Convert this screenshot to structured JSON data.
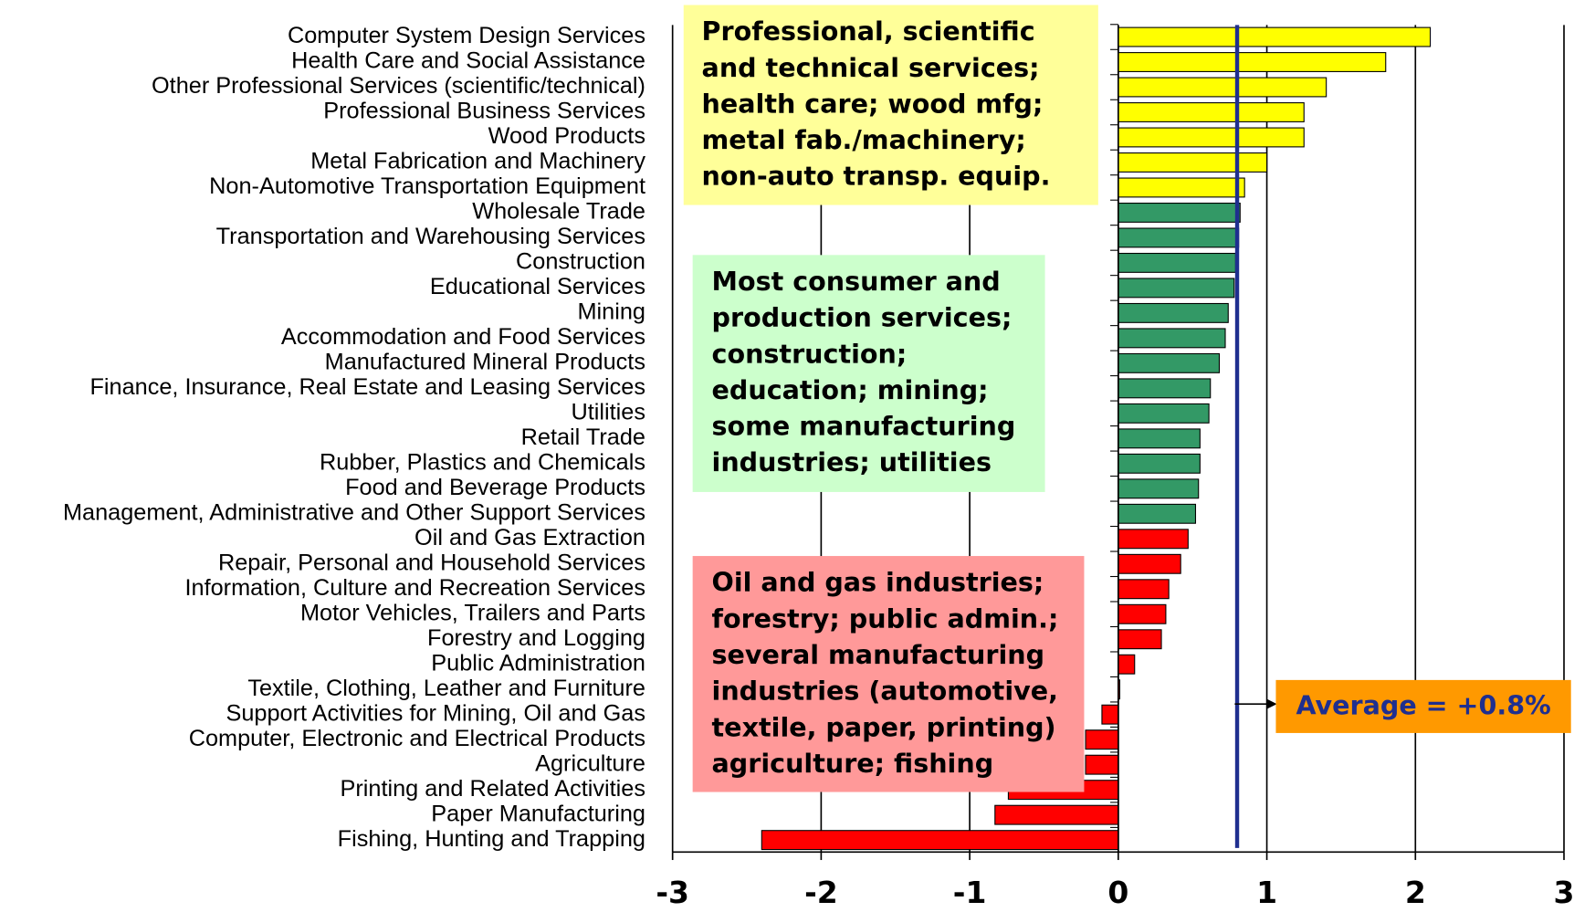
{
  "chart_data": {
    "type": "bar",
    "orientation": "horizontal",
    "categories": [
      "Computer System Design Services",
      "Health Care and Social Assistance",
      "Other Professional Services (scientific/technical)",
      "Professional Business Services",
      "Wood Products",
      "Metal Fabrication and Machinery",
      "Non-Automotive Transportation Equipment",
      "Wholesale Trade",
      "Transportation and Warehousing Services",
      "Construction",
      "Educational Services",
      "Mining",
      "Accommodation and Food Services",
      "Manufactured Mineral Products",
      "Finance, Insurance, Real Estate and Leasing Services",
      "Utilities",
      "Retail Trade",
      "Rubber, Plastics and Chemicals",
      "Food and Beverage Products",
      "Management, Administrative and Other Support Services",
      "Oil and Gas Extraction",
      "Repair, Personal and Household Services",
      "Information, Culture and Recreation Services",
      "Motor Vehicles, Trailers and Parts",
      "Forestry and Logging",
      "Public Administration",
      "Textile, Clothing, Leather and Furniture",
      "Support Activities for Mining, Oil and Gas",
      "Computer, Electronic and Electrical Products",
      "Agriculture",
      "Printing and Related Activities",
      "Paper Manufacturing",
      "Fishing, Hunting and Trapping"
    ],
    "values": [
      2.1,
      1.8,
      1.4,
      1.25,
      1.25,
      1.0,
      0.85,
      0.82,
      0.81,
      0.79,
      0.78,
      0.74,
      0.72,
      0.68,
      0.62,
      0.61,
      0.55,
      0.55,
      0.54,
      0.52,
      0.47,
      0.42,
      0.34,
      0.32,
      0.29,
      0.11,
      0.01,
      -0.11,
      -0.22,
      -0.22,
      -0.74,
      -0.83,
      -2.4
    ],
    "colors": [
      "#ffff00",
      "#ffff00",
      "#ffff00",
      "#ffff00",
      "#ffff00",
      "#ffff00",
      "#ffff00",
      "#339966",
      "#339966",
      "#339966",
      "#339966",
      "#339966",
      "#339966",
      "#339966",
      "#339966",
      "#339966",
      "#339966",
      "#339966",
      "#339966",
      "#339966",
      "#ff0000",
      "#ff0000",
      "#ff0000",
      "#ff0000",
      "#ff0000",
      "#ff0000",
      "#ff0000",
      "#ff0000",
      "#ff0000",
      "#ff0000",
      "#ff0000",
      "#ff0000",
      "#ff0000"
    ],
    "xlim": [
      -3,
      3
    ],
    "xticks": [
      -3,
      -2,
      -1,
      0,
      1,
      2,
      3
    ],
    "grid": true,
    "average": {
      "value": 0.8,
      "label": "Average = +0.8%"
    },
    "annotations": [
      {
        "lines": [
          "Professional, scientific",
          "and technical services;",
          "health care; wood mfg;",
          "metal fab./machinery;",
          "non-auto transp. equip."
        ],
        "color": "#ffff99"
      },
      {
        "lines": [
          "Most consumer and",
          "production services;",
          "construction;",
          "education; mining;",
          "some manufacturing",
          "industries; utilities"
        ],
        "color": "#ccffcc"
      },
      {
        "lines": [
          "Oil and gas industries;",
          "forestry; public admin.;",
          "several manufacturing",
          "industries (automotive,",
          "textile, paper, printing)",
          "agriculture; fishing"
        ],
        "color": "#ff9999"
      }
    ]
  }
}
